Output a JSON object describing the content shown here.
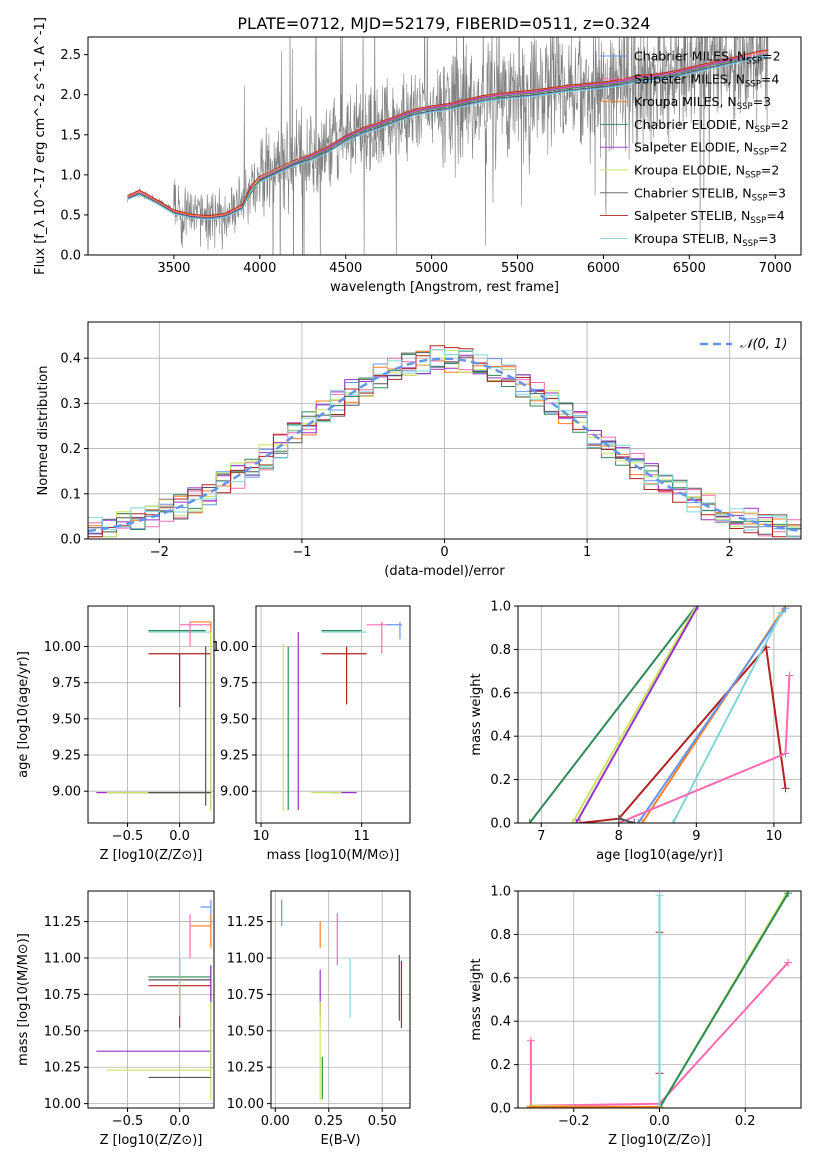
{
  "figure": {
    "title": "PLATE=0712, MJD=52179, FIBERID=0511, z=0.324",
    "colors": {
      "data": "#808080",
      "axis": "#000000",
      "grid": "#b0b0b0",
      "chabrier_miles": "#6495ed",
      "salpeter_miles": "#ff69b4",
      "kroupa_miles": "#ff7f24",
      "chabrier_elodie": "#2e8b57",
      "salpeter_elodie": "#9932cc",
      "kroupa_elodie": "#c8e660",
      "chabrier_stelib": "#555555",
      "salpeter_stelib": "#b22222",
      "kroupa_stelib": "#7fd6d6"
    }
  },
  "chart_data": [
    {
      "id": "spectrum",
      "type": "line",
      "title": "PLATE=0712, MJD=52179, FIBERID=0511, z=0.324",
      "xlabel": "wavelength [Angstrom, rest frame]",
      "ylabel": "Flux [f_λ 10^-17 erg cm^-2 s^-1 A^-1]",
      "xlim": [
        3000,
        7150
      ],
      "ylim": [
        0,
        2.72
      ],
      "xticks": [
        3500,
        4000,
        4500,
        5000,
        5500,
        6000,
        6500,
        7000
      ],
      "yticks": [
        0.0,
        0.5,
        1.0,
        1.5,
        2.0,
        2.5
      ],
      "grid": false,
      "legend_position": "top-right",
      "data_series": {
        "name": "",
        "x": [
          3230,
          3300,
          3400,
          3500,
          3600,
          3700,
          3800,
          3900,
          3950,
          4000,
          4100,
          4200,
          4300,
          4400,
          4500,
          4600,
          4700,
          4800,
          4900,
          5000,
          5100,
          5200,
          5300,
          5400,
          5500,
          5600,
          5700,
          5800,
          5900,
          6000,
          6100,
          6200,
          6300,
          6400,
          6500,
          6600,
          6700,
          6800,
          6900,
          6960
        ],
        "y": [
          0.72,
          0.78,
          0.68,
          0.55,
          0.5,
          0.48,
          0.5,
          0.62,
          0.85,
          0.95,
          1.05,
          1.15,
          1.22,
          1.32,
          1.45,
          1.55,
          1.62,
          1.7,
          1.78,
          1.82,
          1.85,
          1.9,
          1.95,
          1.98,
          2.0,
          2.02,
          2.05,
          2.08,
          2.1,
          2.12,
          2.15,
          2.2,
          2.22,
          2.25,
          2.3,
          2.35,
          2.4,
          2.45,
          2.5,
          2.52
        ]
      },
      "series": [
        {
          "name": "Chabrier MILES, N_SSP=2",
          "x": [
            3230,
            3300,
            3400,
            3500,
            3600,
            3700,
            3800,
            3900,
            3950,
            4000,
            4100,
            4200,
            4300,
            4400,
            4500,
            4600,
            4700,
            4800,
            4900,
            5000,
            5100,
            5200,
            5300,
            5400,
            5500,
            5600,
            5700,
            5800,
            5900,
            6000,
            6100,
            6200,
            6300,
            6400,
            6500,
            6600,
            6700,
            6800,
            6900,
            6960
          ],
          "y": [
            0.7,
            0.76,
            0.65,
            0.52,
            0.47,
            0.45,
            0.48,
            0.58,
            0.82,
            0.92,
            1.02,
            1.12,
            1.19,
            1.29,
            1.42,
            1.52,
            1.59,
            1.67,
            1.75,
            1.79,
            1.82,
            1.87,
            1.92,
            1.95,
            1.97,
            1.99,
            2.02,
            2.05,
            2.07,
            2.09,
            2.12,
            2.17,
            2.19,
            2.22,
            2.27,
            2.32,
            2.37,
            2.42,
            2.47,
            2.49
          ]
        },
        {
          "name": "Salpeter MILES, N_SSP=4",
          "x": [
            3230,
            3300,
            3400,
            3500,
            3600,
            3700,
            3800,
            3900,
            3950,
            4000,
            4100,
            4200,
            4300,
            4400,
            4500,
            4600,
            4700,
            4800,
            4900,
            5000,
            5100,
            5200,
            5300,
            5400,
            5500,
            5600,
            5700,
            5800,
            5900,
            6000,
            6100,
            6200,
            6300,
            6400,
            6500,
            6600,
            6700,
            6800,
            6900,
            6960
          ],
          "y": [
            0.72,
            0.79,
            0.67,
            0.54,
            0.49,
            0.47,
            0.5,
            0.6,
            0.84,
            0.95,
            1.05,
            1.15,
            1.23,
            1.33,
            1.46,
            1.56,
            1.63,
            1.71,
            1.79,
            1.83,
            1.86,
            1.91,
            1.96,
            1.99,
            2.01,
            2.03,
            2.06,
            2.09,
            2.11,
            2.13,
            2.16,
            2.21,
            2.23,
            2.26,
            2.31,
            2.36,
            2.41,
            2.46,
            2.51,
            2.53
          ]
        },
        {
          "name": "Kroupa MILES, N_SSP=3",
          "x": [
            3230,
            3300,
            3400,
            3500,
            3600,
            3700,
            3800,
            3900,
            3950,
            4000,
            4100,
            4200,
            4300,
            4400,
            4500,
            4600,
            4700,
            4800,
            4900,
            5000,
            5100,
            5200,
            5300,
            5400,
            5500,
            5600,
            5700,
            5800,
            5900,
            6000,
            6100,
            6200,
            6300,
            6400,
            6500,
            6600,
            6700,
            6800,
            6900,
            6960
          ],
          "y": [
            0.73,
            0.8,
            0.68,
            0.55,
            0.5,
            0.48,
            0.51,
            0.62,
            0.86,
            0.97,
            1.07,
            1.17,
            1.25,
            1.35,
            1.48,
            1.58,
            1.65,
            1.73,
            1.81,
            1.85,
            1.88,
            1.93,
            1.98,
            2.01,
            2.03,
            2.05,
            2.08,
            2.11,
            2.13,
            2.15,
            2.18,
            2.23,
            2.25,
            2.28,
            2.33,
            2.38,
            2.43,
            2.48,
            2.53,
            2.55
          ]
        },
        {
          "name": "Chabrier ELODIE, N_SSP=2",
          "x": [
            3900,
            4000,
            4100,
            4200,
            4300,
            4400,
            4500,
            4600,
            4700,
            4800,
            4900,
            5000,
            5100,
            5200,
            5300,
            5400,
            5500,
            5600,
            5700,
            5800,
            5900,
            6000,
            6100,
            6200,
            6300,
            6400,
            6500,
            6600,
            6700,
            6800
          ],
          "y": [
            0.6,
            0.94,
            1.04,
            1.14,
            1.22,
            1.32,
            1.45,
            1.55,
            1.62,
            1.7,
            1.78,
            1.82,
            1.85,
            1.9,
            1.95,
            1.98,
            2.0,
            2.02,
            2.05,
            2.08,
            2.1,
            2.12,
            2.15,
            2.2,
            2.22,
            2.25,
            2.3,
            2.35,
            2.4,
            2.45
          ]
        },
        {
          "name": "Salpeter ELODIE, N_SSP=2",
          "x": [
            3900,
            4000,
            4100,
            4200,
            4300,
            4400,
            4500,
            4600,
            4700,
            4800,
            4900,
            5000,
            5100,
            5200,
            5300,
            5400,
            5500,
            5600,
            5700,
            5800,
            5900,
            6000,
            6100,
            6200,
            6300,
            6400,
            6500,
            6600,
            6700,
            6800
          ],
          "y": [
            0.62,
            0.96,
            1.06,
            1.16,
            1.24,
            1.34,
            1.47,
            1.57,
            1.64,
            1.72,
            1.8,
            1.84,
            1.87,
            1.92,
            1.97,
            2.0,
            2.02,
            2.04,
            2.07,
            2.1,
            2.12,
            2.14,
            2.17,
            2.22,
            2.24,
            2.27,
            2.32,
            2.37,
            2.42,
            2.47
          ]
        },
        {
          "name": "Kroupa ELODIE, N_SSP=2",
          "x": [
            3900,
            4000,
            4100,
            4200,
            4300,
            4400,
            4500,
            4600,
            4700,
            4800,
            4900,
            5000,
            5100,
            5200,
            5300,
            5400,
            5500,
            5600,
            5700,
            5800,
            5900,
            6000,
            6100,
            6200,
            6300,
            6400,
            6500,
            6600,
            6700,
            6800
          ],
          "y": [
            0.63,
            0.97,
            1.07,
            1.17,
            1.26,
            1.36,
            1.49,
            1.59,
            1.66,
            1.74,
            1.82,
            1.86,
            1.89,
            1.94,
            1.99,
            2.02,
            2.04,
            2.06,
            2.09,
            2.12,
            2.14,
            2.16,
            2.19,
            2.24,
            2.26,
            2.29,
            2.34,
            2.39,
            2.44,
            2.49
          ]
        },
        {
          "name": "Chabrier STELIB, N_SSP=3",
          "x": [
            3230,
            3300,
            3400,
            3500,
            3600,
            3700,
            3800,
            3900,
            3950,
            4000,
            4100,
            4200,
            4300,
            4400,
            4500,
            4600,
            4700,
            4800,
            4900,
            5000,
            5100,
            5200,
            5300,
            5400,
            5500,
            5600,
            5700,
            5800,
            5900,
            6000,
            6100,
            6200,
            6300,
            6400,
            6500,
            6600,
            6700,
            6800,
            6900,
            6960
          ],
          "y": [
            0.71,
            0.77,
            0.66,
            0.53,
            0.48,
            0.46,
            0.49,
            0.59,
            0.83,
            0.93,
            1.03,
            1.13,
            1.2,
            1.3,
            1.43,
            1.53,
            1.6,
            1.68,
            1.76,
            1.8,
            1.83,
            1.88,
            1.93,
            1.96,
            1.98,
            2.0,
            2.03,
            2.06,
            2.08,
            2.1,
            2.13,
            2.18,
            2.2,
            2.23,
            2.28,
            2.33,
            2.38,
            2.43,
            2.48,
            2.5
          ]
        },
        {
          "name": "Salpeter STELIB, N_SSP=4",
          "x": [
            3230,
            3300,
            3400,
            3500,
            3600,
            3700,
            3800,
            3900,
            3950,
            4000,
            4100,
            4200,
            4300,
            4400,
            4500,
            4600,
            4700,
            4800,
            4900,
            5000,
            5100,
            5200,
            5300,
            5400,
            5500,
            5600,
            5700,
            5800,
            5900,
            6000,
            6100,
            6200,
            6300,
            6400,
            6500,
            6600,
            6700,
            6800,
            6900,
            6960
          ],
          "y": [
            0.74,
            0.81,
            0.69,
            0.56,
            0.51,
            0.49,
            0.52,
            0.63,
            0.87,
            0.98,
            1.08,
            1.18,
            1.26,
            1.36,
            1.49,
            1.59,
            1.66,
            1.74,
            1.82,
            1.86,
            1.89,
            1.94,
            1.99,
            2.02,
            2.04,
            2.06,
            2.09,
            2.12,
            2.14,
            2.16,
            2.19,
            2.24,
            2.26,
            2.29,
            2.34,
            2.39,
            2.44,
            2.49,
            2.54,
            2.56
          ]
        },
        {
          "name": "Kroupa STELIB, N_SSP=3",
          "x": [
            3230,
            3300,
            3400,
            3500,
            3600,
            3700,
            3800,
            3900,
            3950,
            4000,
            4100,
            4200,
            4300,
            4400,
            4500,
            4600,
            4700,
            4800,
            4900,
            5000,
            5100,
            5200,
            5300,
            5400,
            5500,
            5600,
            5700,
            5800,
            5900,
            6000,
            6100,
            6200,
            6300,
            6400,
            6500,
            6600,
            6700,
            6800,
            6900,
            6960
          ],
          "y": [
            0.69,
            0.75,
            0.64,
            0.51,
            0.46,
            0.44,
            0.47,
            0.57,
            0.81,
            0.91,
            1.01,
            1.11,
            1.18,
            1.28,
            1.41,
            1.51,
            1.58,
            1.66,
            1.74,
            1.78,
            1.81,
            1.86,
            1.91,
            1.94,
            1.96,
            1.98,
            2.01,
            2.04,
            2.06,
            2.08,
            2.11,
            2.16,
            2.18,
            2.21,
            2.26,
            2.31,
            2.36,
            2.41,
            2.46,
            2.48
          ]
        }
      ]
    },
    {
      "id": "residuals",
      "type": "line",
      "xlabel": "(data-model)/error",
      "ylabel": "Normed distribution",
      "xlim": [
        -2.5,
        2.5
      ],
      "ylim": [
        0,
        0.48
      ],
      "xticks": [
        -2,
        -1,
        0,
        1,
        2
      ],
      "yticks": [
        0.0,
        0.1,
        0.2,
        0.3,
        0.4
      ],
      "grid": true,
      "legend_position": "top-right",
      "reference": {
        "name": "N(0,1)",
        "mean": 0,
        "sigma": 1
      },
      "histogram_bins": {
        "start": -2.5,
        "width": 0.1,
        "count": 50
      },
      "histogram_note": "nine step histograms, one per model colour"
    },
    {
      "id": "age_vs_Z",
      "type": "scatter",
      "xlabel": "Z [log10(Z/Z⊙)]",
      "ylabel": "age  [log10(age/yr)]",
      "xlim": [
        -0.88,
        0.33
      ],
      "ylim": [
        8.78,
        10.28
      ],
      "xticks": [
        -0.5,
        0.0
      ],
      "yticks": [
        9.0,
        9.25,
        9.5,
        9.75,
        10.0
      ],
      "grid": true
    },
    {
      "id": "age_vs_mass",
      "type": "scatter",
      "xlabel": "mass [log10(M/M⊙)]",
      "xlim": [
        9.95,
        11.48
      ],
      "ylim": [
        8.78,
        10.28
      ],
      "xticks": [
        10,
        11
      ],
      "yticks": [
        9.0,
        9.25,
        9.5,
        9.75,
        10.0
      ],
      "grid": true
    },
    {
      "id": "massweight_vs_age",
      "type": "line",
      "xlabel": "age  [log10(age/yr)]",
      "ylabel": "mass weight",
      "xlim": [
        6.7,
        10.35
      ],
      "ylim": [
        0,
        1.0
      ],
      "xticks": [
        7,
        8,
        9,
        10
      ],
      "yticks": [
        0.0,
        0.2,
        0.4,
        0.6,
        0.8,
        1.0
      ],
      "grid": true
    },
    {
      "id": "mass_vs_Z",
      "type": "scatter",
      "xlabel": "Z [log10(Z/Z⊙)]",
      "ylabel": "mass [log10(M/M⊙)]",
      "xlim": [
        -0.88,
        0.33
      ],
      "ylim": [
        9.97,
        11.46
      ],
      "xticks": [
        -0.5,
        0.0
      ],
      "yticks": [
        10.0,
        10.25,
        10.5,
        10.75,
        11.0,
        11.25
      ],
      "grid": true
    },
    {
      "id": "mass_vs_ebv",
      "type": "scatter",
      "xlabel": "E(B-V)",
      "xlim": [
        -0.02,
        0.63
      ],
      "ylim": [
        9.97,
        11.46
      ],
      "xticks": [
        0.0,
        0.25,
        0.5
      ],
      "yticks": [
        10.0,
        10.25,
        10.5,
        10.75,
        11.0,
        11.25
      ],
      "grid": true
    },
    {
      "id": "massweight_vs_Z",
      "type": "line",
      "xlabel": "Z [log10(Z/Z⊙)]",
      "ylabel": "mass weight",
      "xlim": [
        -0.33,
        0.33
      ],
      "ylim": [
        0,
        1.0
      ],
      "xticks": [
        -0.2,
        0.0,
        0.2
      ],
      "yticks": [
        0.0,
        0.2,
        0.4,
        0.6,
        0.8,
        1.0
      ],
      "grid": true
    }
  ]
}
